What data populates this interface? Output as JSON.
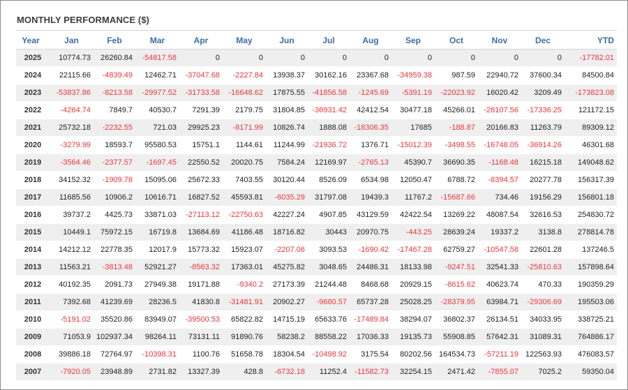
{
  "title": "MONTHLY PERFORMANCE ($)",
  "columns": [
    "Year",
    "Jan",
    "Feb",
    "Mar",
    "Apr",
    "May",
    "Jun",
    "Jul",
    "Aug",
    "Sep",
    "Oct",
    "Nov",
    "Dec",
    "YTD"
  ],
  "colors": {
    "header_text": "#3a6ea5",
    "negative": "#e8363c",
    "stripe": "#efefef"
  },
  "rows": [
    [
      "2025",
      "10774.73",
      "26260.84",
      "-54817.58",
      "0",
      "0",
      "0",
      "0",
      "0",
      "0",
      "0",
      "0",
      "0",
      "-17782.01"
    ],
    [
      "2024",
      "22115.66",
      "-4839.49",
      "12462.71",
      "-37047.68",
      "-2227.84",
      "13938.37",
      "30162.16",
      "23367.68",
      "-34959.38",
      "987.59",
      "22940.72",
      "37600.34",
      "84500.84"
    ],
    [
      "2023",
      "-53837.86",
      "-8213.58",
      "-29977.52",
      "-31733.58",
      "-16648.62",
      "17875.55",
      "-41856.58",
      "-1245.69",
      "-5391.19",
      "-22023.92",
      "16020.42",
      "3209.49",
      "-173823.08"
    ],
    [
      "2022",
      "-4264.74",
      "7849.7",
      "40530.7",
      "7291.39",
      "2179.75",
      "31804.85",
      "-36931.42",
      "42412.54",
      "30477.18",
      "45266.01",
      "-28107.56",
      "-17336.25",
      "121172.15"
    ],
    [
      "2021",
      "25732.18",
      "-2232.55",
      "721.03",
      "29925.23",
      "-8171.99",
      "10826.74",
      "1888.08",
      "-18306.35",
      "17685",
      "-188.87",
      "20166.83",
      "11263.79",
      "89309.12"
    ],
    [
      "2020",
      "-3279.99",
      "18593.7",
      "95580.53",
      "15751.1",
      "1144.61",
      "11244.99",
      "-21936.72",
      "1376.71",
      "-15012.39",
      "-3498.55",
      "-16748.05",
      "-36914.26",
      "46301.68"
    ],
    [
      "2019",
      "-3564.46",
      "-2377.57",
      "-1697.45",
      "22550.52",
      "20020.75",
      "7584.24",
      "12169.97",
      "-2765.13",
      "45390.7",
      "36690.35",
      "-1168.48",
      "16215.18",
      "149048.62"
    ],
    [
      "2018",
      "34152.32",
      "-1909.78",
      "15095.06",
      "25672.33",
      "7403.55",
      "30120.44",
      "8526.09",
      "6534.98",
      "12050.47",
      "6788.72",
      "-8394.57",
      "20277.78",
      "156317.39"
    ],
    [
      "2017",
      "11685.56",
      "10906.2",
      "10616.71",
      "16827.52",
      "45593.81",
      "-6035.29",
      "31797.08",
      "19439.3",
      "11767.2",
      "-15687.66",
      "734.46",
      "19156.29",
      "156801.18"
    ],
    [
      "2016",
      "39737.2",
      "4425.73",
      "33871.03",
      "-27113.12",
      "-22750.63",
      "42227.24",
      "4907.85",
      "43129.59",
      "42422.54",
      "13269.22",
      "48087.54",
      "32616.53",
      "254830.72"
    ],
    [
      "2015",
      "10449.1",
      "75972.15",
      "16719.8",
      "13684.69",
      "41186.48",
      "18716.82",
      "30443",
      "20970.75",
      "-443.25",
      "28639.24",
      "19337.2",
      "3138.8",
      "278814.78"
    ],
    [
      "2014",
      "14212.12",
      "22778.35",
      "12017.9",
      "15773.32",
      "15923.07",
      "-2207.06",
      "3093.53",
      "-1690.42",
      "-17467.28",
      "62759.27",
      "-10547.58",
      "22601.28",
      "137246.5"
    ],
    [
      "2013",
      "11563.21",
      "-3813.48",
      "52921.27",
      "-8563.32",
      "17363.01",
      "45275.82",
      "3048.65",
      "24486.31",
      "18133.98",
      "-9247.51",
      "32541.33",
      "-25810.63",
      "157898.64"
    ],
    [
      "2012",
      "40192.35",
      "2091.73",
      "27949.38",
      "19171.88",
      "-9340.2",
      "27173.39",
      "21244.48",
      "8468.68",
      "20929.15",
      "-8615.62",
      "40623.74",
      "470.33",
      "190359.29"
    ],
    [
      "2011",
      "7392.68",
      "41239.69",
      "28236.5",
      "41830.8",
      "-31481.91",
      "20902.27",
      "-9680.57",
      "65737.28",
      "25028.25",
      "-28379.95",
      "63984.71",
      "-29306.69",
      "195503.06"
    ],
    [
      "2010",
      "-5191.02",
      "35520.86",
      "83949.07",
      "-39500.53",
      "65822.82",
      "14715.19",
      "65633.76",
      "-17489.84",
      "38294.07",
      "36802.37",
      "26134.51",
      "34033.95",
      "338725.21"
    ],
    [
      "2009",
      "71053.9",
      "102937.34",
      "98264.11",
      "73131.11",
      "91890.76",
      "58238.2",
      "88558.22",
      "17036.33",
      "19135.73",
      "55908.85",
      "57642.31",
      "31089.31",
      "764886.17"
    ],
    [
      "2008",
      "39886.18",
      "72764.97",
      "-10398.31",
      "1100.76",
      "51658.78",
      "18304.54",
      "-10498.92",
      "3175.54",
      "80202.56",
      "164534.73",
      "-57211.19",
      "122563.93",
      "476083.57"
    ],
    [
      "2007",
      "-7920.05",
      "23948.89",
      "2731.82",
      "13327.39",
      "428.8",
      "-6732.18",
      "11252.4",
      "-11582.73",
      "32254.15",
      "2471.42",
      "-7855.07",
      "7025.2",
      "59350.04"
    ]
  ]
}
